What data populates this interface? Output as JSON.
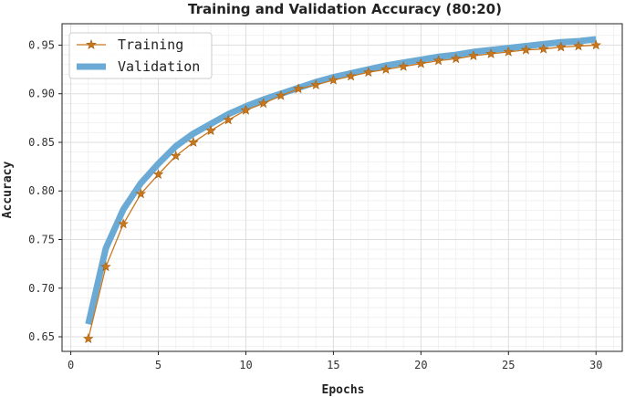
{
  "chart_data": {
    "type": "line",
    "title": "Training and Validation Accuracy (80:20)",
    "xlabel": "Epochs",
    "ylabel": "Accuracy",
    "xlim": [
      -0.5,
      31.5
    ],
    "ylim": [
      0.635,
      0.972
    ],
    "xticks": [
      0,
      5,
      10,
      15,
      20,
      25,
      30
    ],
    "xtick_labels": [
      "0",
      "5",
      "10",
      "15",
      "20",
      "25",
      "30"
    ],
    "yticks": [
      0.65,
      0.7,
      0.75,
      0.8,
      0.85,
      0.9,
      0.95
    ],
    "ytick_labels": [
      "0.65",
      "0.70",
      "0.75",
      "0.80",
      "0.85",
      "0.90",
      "0.95"
    ],
    "minor_grid": true,
    "legend_position": "top-left",
    "x": [
      1,
      2,
      3,
      4,
      5,
      6,
      7,
      8,
      9,
      10,
      11,
      12,
      13,
      14,
      15,
      16,
      17,
      18,
      19,
      20,
      21,
      22,
      23,
      24,
      25,
      26,
      27,
      28,
      29,
      30
    ],
    "series": [
      {
        "name": "Training",
        "color": "#c8771e",
        "marker": "star",
        "values": [
          0.648,
          0.722,
          0.766,
          0.797,
          0.817,
          0.836,
          0.85,
          0.862,
          0.873,
          0.883,
          0.89,
          0.898,
          0.905,
          0.909,
          0.914,
          0.918,
          0.922,
          0.925,
          0.928,
          0.931,
          0.934,
          0.936,
          0.939,
          0.941,
          0.943,
          0.945,
          0.946,
          0.948,
          0.949,
          0.95
        ]
      },
      {
        "name": "Validation",
        "color": "#6aaad4",
        "marker": "none",
        "values": [
          0.663,
          0.741,
          0.781,
          0.808,
          0.828,
          0.846,
          0.859,
          0.869,
          0.879,
          0.887,
          0.894,
          0.9,
          0.906,
          0.912,
          0.917,
          0.921,
          0.925,
          0.929,
          0.932,
          0.935,
          0.938,
          0.94,
          0.943,
          0.945,
          0.947,
          0.949,
          0.951,
          0.953,
          0.954,
          0.956
        ]
      }
    ]
  }
}
